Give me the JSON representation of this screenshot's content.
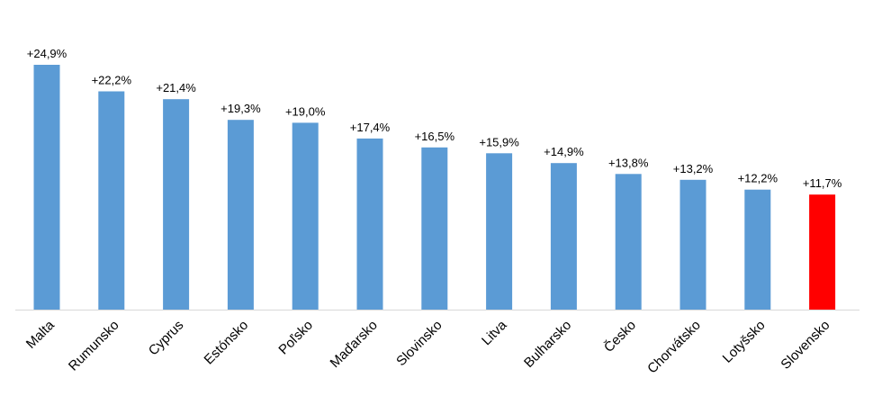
{
  "chart_data": {
    "type": "bar",
    "categories": [
      "Malta",
      "Rumunsko",
      "Cyprus",
      "Estónsko",
      "Poľsko",
      "Maďarsko",
      "Slovinsko",
      "Litva",
      "Bulharsko",
      "Česko",
      "Chorvátsko",
      "Lotyšsko",
      "Slovensko"
    ],
    "values": [
      24.9,
      22.2,
      21.4,
      19.3,
      19.0,
      17.4,
      16.5,
      15.9,
      14.9,
      13.8,
      13.2,
      12.2,
      11.7
    ],
    "value_labels": [
      "+24,9%",
      "+22,2%",
      "+21,4%",
      "+19,3%",
      "+19,0%",
      "+17,4%",
      "+16,5%",
      "+15,9%",
      "+14,9%",
      "+13,8%",
      "+13,2%",
      "+12,2%",
      "+11,7%"
    ],
    "title": "",
    "xlabel": "",
    "ylabel": "",
    "ylim": [
      0,
      25
    ],
    "grid": false,
    "legend": "none",
    "colors": {
      "bar": "#5b9bd5",
      "highlight": "#ff0000",
      "highlight_category": "Slovensko",
      "axis": "#d9d9d9"
    }
  }
}
